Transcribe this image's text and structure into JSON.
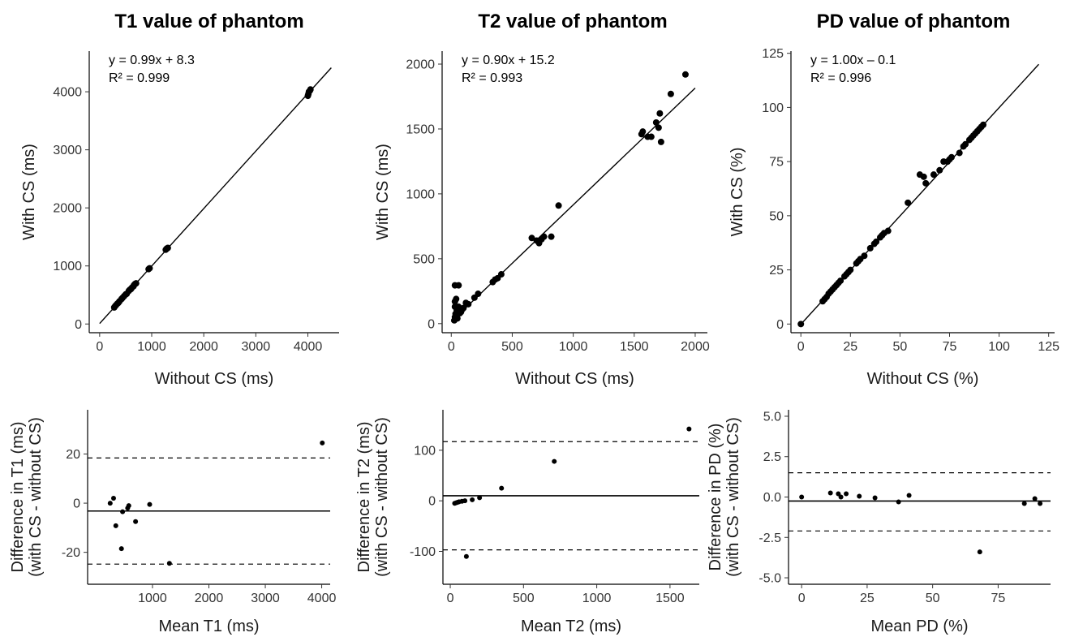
{
  "chart_data": [
    {
      "type": "scatter",
      "title": "T1 value of phantom",
      "xlabel": "Without CS (ms)",
      "ylabel": "With CS (ms)",
      "xlim": [
        -200,
        4600
      ],
      "ylim": [
        -150,
        4700
      ],
      "xticks": [
        0,
        1000,
        2000,
        3000,
        4000
      ],
      "yticks": [
        0,
        1000,
        2000,
        3000,
        4000
      ],
      "annotation": [
        "y = 0.99x + 8.3",
        "R² = 0.999"
      ],
      "fit": {
        "slope": 0.99,
        "intercept": 8.3,
        "xrange": [
          0,
          4450
        ]
      },
      "points": [
        [
          280,
          285
        ],
        [
          300,
          310
        ],
        [
          320,
          330
        ],
        [
          340,
          350
        ],
        [
          360,
          365
        ],
        [
          380,
          390
        ],
        [
          420,
          430
        ],
        [
          440,
          450
        ],
        [
          470,
          480
        ],
        [
          500,
          510
        ],
        [
          520,
          520
        ],
        [
          560,
          570
        ],
        [
          580,
          590
        ],
        [
          600,
          600
        ],
        [
          620,
          625
        ],
        [
          650,
          650
        ],
        [
          660,
          670
        ],
        [
          680,
          690
        ],
        [
          700,
          700
        ],
        [
          940,
          945
        ],
        [
          960,
          960
        ],
        [
          1270,
          1280
        ],
        [
          1290,
          1300
        ],
        [
          1310,
          1310
        ],
        [
          4000,
          3930
        ],
        [
          4010,
          3960
        ],
        [
          4020,
          4000
        ],
        [
          4040,
          4020
        ],
        [
          4050,
          4040
        ]
      ]
    },
    {
      "type": "scatter",
      "title": "T2 value of phantom",
      "xlabel": "Without CS (ms)",
      "ylabel": "With CS (ms)",
      "xlim": [
        -75,
        2100
      ],
      "ylim": [
        -70,
        2100
      ],
      "xticks": [
        0,
        500,
        1000,
        1500,
        2000
      ],
      "yticks": [
        0,
        500,
        1000,
        1500,
        2000
      ],
      "annotation": [
        "y = 0.90x + 15.2",
        "R² = 0.993"
      ],
      "fit": {
        "slope": 0.9,
        "intercept": 15.2,
        "xrange": [
          0,
          2000
        ]
      },
      "points": [
        [
          25,
          25
        ],
        [
          30,
          50
        ],
        [
          35,
          75
        ],
        [
          40,
          60
        ],
        [
          45,
          100
        ],
        [
          50,
          40
        ],
        [
          55,
          120
        ],
        [
          30,
          130
        ],
        [
          30,
          170
        ],
        [
          40,
          190
        ],
        [
          60,
          130
        ],
        [
          70,
          80
        ],
        [
          80,
          90
        ],
        [
          90,
          110
        ],
        [
          100,
          120
        ],
        [
          120,
          160
        ],
        [
          140,
          150
        ],
        [
          30,
          295
        ],
        [
          60,
          295
        ],
        [
          190,
          200
        ],
        [
          220,
          230
        ],
        [
          340,
          320
        ],
        [
          360,
          340
        ],
        [
          380,
          350
        ],
        [
          410,
          380
        ],
        [
          660,
          660
        ],
        [
          700,
          640
        ],
        [
          720,
          620
        ],
        [
          740,
          650
        ],
        [
          760,
          670
        ],
        [
          820,
          670
        ],
        [
          880,
          910
        ],
        [
          1560,
          1460
        ],
        [
          1570,
          1480
        ],
        [
          1610,
          1440
        ],
        [
          1640,
          1440
        ],
        [
          1680,
          1550
        ],
        [
          1700,
          1510
        ],
        [
          1710,
          1620
        ],
        [
          1720,
          1400
        ],
        [
          1800,
          1770
        ],
        [
          1920,
          1920
        ]
      ]
    },
    {
      "type": "scatter",
      "title": "PD value of phantom",
      "xlabel": "Without CS (%)",
      "ylabel": "With CS (%)",
      "xlim": [
        -5,
        128
      ],
      "ylim": [
        -4,
        126
      ],
      "xticks": [
        0,
        25,
        50,
        75,
        100,
        125
      ],
      "yticks": [
        0,
        25,
        50,
        75,
        100,
        125
      ],
      "annotation": [
        "y = 1.00x – 0.1",
        "R² = 0.996"
      ],
      "fit": {
        "slope": 1.0,
        "intercept": -0.1,
        "xrange": [
          0,
          120
        ]
      },
      "points": [
        [
          0,
          0
        ],
        [
          11,
          10.5
        ],
        [
          12,
          11.5
        ],
        [
          13,
          12.5
        ],
        [
          14,
          14
        ],
        [
          15,
          15
        ],
        [
          16,
          16
        ],
        [
          17,
          17
        ],
        [
          18,
          18
        ],
        [
          19,
          19
        ],
        [
          20,
          20
        ],
        [
          22,
          22
        ],
        [
          23,
          23
        ],
        [
          24,
          24
        ],
        [
          25,
          25
        ],
        [
          28,
          28
        ],
        [
          29,
          29
        ],
        [
          30,
          30
        ],
        [
          32,
          31.5
        ],
        [
          35,
          35
        ],
        [
          37,
          37
        ],
        [
          38,
          38
        ],
        [
          40,
          40
        ],
        [
          41,
          41
        ],
        [
          42,
          42
        ],
        [
          44,
          43
        ],
        [
          54,
          56
        ],
        [
          60,
          69
        ],
        [
          62,
          68
        ],
        [
          63,
          65
        ],
        [
          67,
          69
        ],
        [
          70,
          71
        ],
        [
          72,
          75
        ],
        [
          74,
          75
        ],
        [
          75,
          76
        ],
        [
          76,
          77
        ],
        [
          80,
          79
        ],
        [
          82,
          82
        ],
        [
          83,
          83
        ],
        [
          85,
          85
        ],
        [
          86,
          86
        ],
        [
          87,
          87
        ],
        [
          88,
          88
        ],
        [
          89,
          89
        ],
        [
          90,
          90
        ],
        [
          91,
          91
        ],
        [
          92,
          92
        ]
      ]
    },
    {
      "type": "scatter",
      "xlabel": "Mean T1 (ms)",
      "ylabel": [
        "Difference in T1 (ms)",
        "(with CS - without CS)"
      ],
      "xlim": [
        -150,
        4150
      ],
      "ylim": [
        -33,
        38
      ],
      "xticks": [
        1000,
        2000,
        3000,
        4000
      ],
      "yticks": [
        -20,
        0,
        20
      ],
      "mean_diff": -3.2,
      "limits_of_agreement": [
        -24.8,
        18.4
      ],
      "points": [
        [
          250,
          0
        ],
        [
          310,
          2
        ],
        [
          350,
          -9.2
        ],
        [
          450,
          -18.5
        ],
        [
          470,
          -3.5
        ],
        [
          560,
          -2
        ],
        [
          580,
          -1
        ],
        [
          700,
          -7.5
        ],
        [
          950,
          -0.5
        ],
        [
          1300,
          -24.5
        ],
        [
          4010,
          24.5
        ]
      ]
    },
    {
      "type": "scatter",
      "xlabel": "Mean T2 (ms)",
      "ylabel": [
        "Difference in T2 (ms)",
        "(with CS - without CS)"
      ],
      "xlim": [
        -50,
        1700
      ],
      "ylim": [
        -165,
        180
      ],
      "xticks": [
        0,
        500,
        1000,
        1500
      ],
      "yticks": [
        -100,
        0,
        100
      ],
      "mean_diff": 10,
      "limits_of_agreement": [
        -97,
        117
      ],
      "points": [
        [
          30,
          -5
        ],
        [
          40,
          -4
        ],
        [
          50,
          -3
        ],
        [
          60,
          -2
        ],
        [
          80,
          -1
        ],
        [
          100,
          0
        ],
        [
          110,
          -110
        ],
        [
          150,
          2
        ],
        [
          200,
          6
        ],
        [
          350,
          25
        ],
        [
          710,
          78
        ],
        [
          1630,
          142
        ]
      ]
    },
    {
      "type": "scatter",
      "xlabel": "Mean PD (%)",
      "ylabel": [
        "Difference in PD (%)",
        "(with CS - without CS)"
      ],
      "xlim": [
        -5,
        95
      ],
      "ylim": [
        -5.4,
        5.4
      ],
      "xticks": [
        0,
        25,
        50,
        75
      ],
      "yticks": [
        -5.0,
        -2.5,
        0.0,
        2.5,
        5.0
      ],
      "ytick_labels": [
        "-5.0",
        "-2.5",
        "0.0",
        "2.5",
        "5.0"
      ],
      "mean_diff": -0.25,
      "limits_of_agreement": [
        -2.1,
        1.5
      ],
      "points": [
        [
          0,
          0
        ],
        [
          11,
          0.25
        ],
        [
          14,
          0.2
        ],
        [
          15,
          0
        ],
        [
          17,
          0.2
        ],
        [
          22,
          0.05
        ],
        [
          28,
          -0.05
        ],
        [
          37,
          -0.3
        ],
        [
          41,
          0.1
        ],
        [
          68,
          -3.4
        ],
        [
          85,
          -0.4
        ],
        [
          89,
          -0.1
        ],
        [
          91,
          -0.4
        ]
      ]
    }
  ]
}
